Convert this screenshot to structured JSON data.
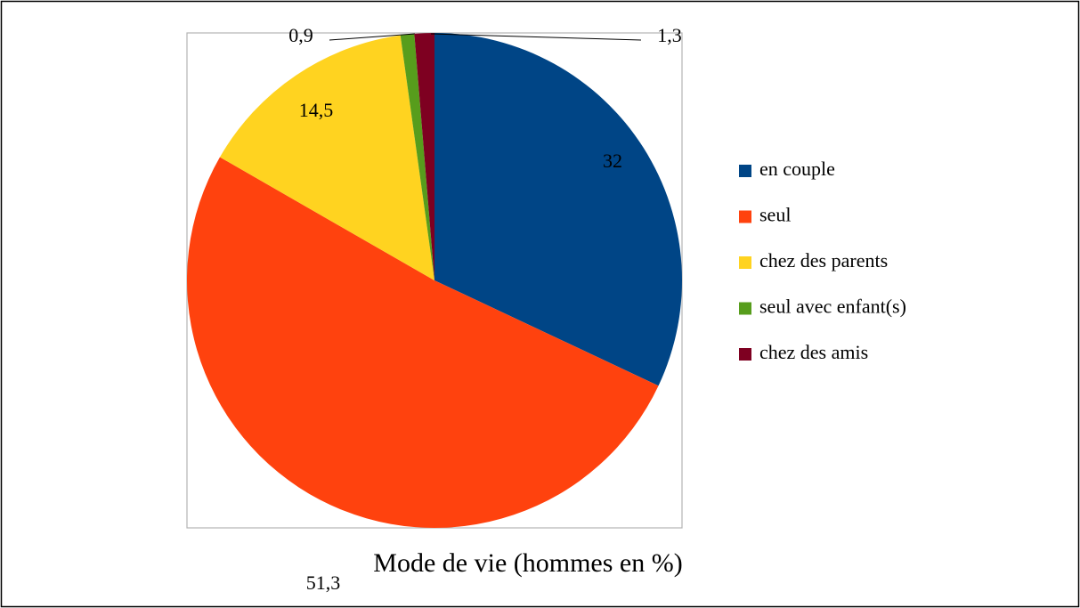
{
  "chart_data": {
    "type": "pie",
    "title": "Mode de vie (hommes en %)",
    "categories": [
      "en couple",
      "seul",
      "chez des parents",
      "seul avec enfant(s)",
      "chez des amis"
    ],
    "values": [
      32,
      51.3,
      14.5,
      0.9,
      1.3
    ],
    "value_labels": [
      "32",
      "51,3",
      "14,5",
      "0,9",
      "1,3"
    ],
    "colors": [
      "#004586",
      "#ff420e",
      "#ffd320",
      "#579d1c",
      "#7e0021"
    ],
    "legend": "right"
  }
}
